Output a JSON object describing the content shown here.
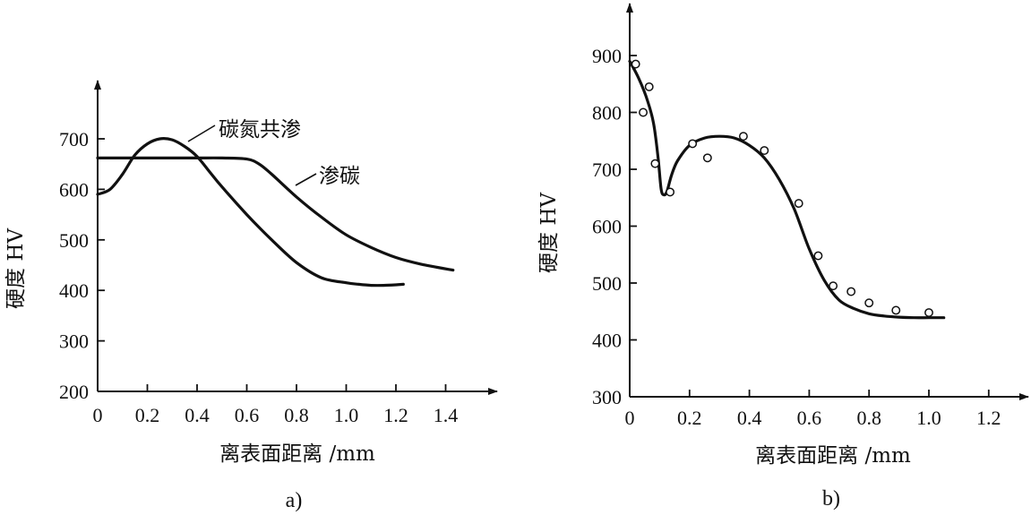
{
  "chart_data": [
    {
      "type": "line",
      "caption": "a)",
      "xlabel": "离表面距离 /mm",
      "ylabel": "硬度 HV",
      "xlim": [
        0,
        1.55
      ],
      "ylim": [
        200,
        780
      ],
      "xticks": [
        "0",
        "0.2",
        "0.4",
        "0.6",
        "0.8",
        "1.0",
        "1.2",
        "1.4"
      ],
      "yticks": [
        "200",
        "300",
        "400",
        "500",
        "600",
        "700"
      ],
      "series": [
        {
          "name": "碳氮共渗",
          "x": [
            0,
            0.05,
            0.1,
            0.15,
            0.2,
            0.25,
            0.3,
            0.35,
            0.4,
            0.45,
            0.5,
            0.6,
            0.7,
            0.8,
            0.9,
            1.0,
            1.05,
            1.1,
            1.15,
            1.2,
            1.23
          ],
          "y": [
            590,
            600,
            630,
            668,
            690,
            700,
            698,
            685,
            665,
            635,
            605,
            550,
            500,
            455,
            425,
            415,
            412,
            410,
            410,
            411,
            412
          ]
        },
        {
          "name": "渗碳",
          "x": [
            0,
            0.1,
            0.2,
            0.3,
            0.4,
            0.5,
            0.6,
            0.65,
            0.7,
            0.8,
            0.9,
            1.0,
            1.1,
            1.2,
            1.3,
            1.43
          ],
          "y": [
            662,
            662,
            662,
            662,
            662,
            662,
            660,
            650,
            630,
            585,
            545,
            510,
            485,
            465,
            452,
            440
          ]
        }
      ],
      "annotations": [
        "碳氮共渗",
        "渗碳"
      ]
    },
    {
      "type": "line",
      "caption": "b)",
      "xlabel": "离表面距离 /mm",
      "ylabel": "硬度 HV",
      "xlim": [
        0,
        1.3
      ],
      "ylim": [
        300,
        960
      ],
      "xticks": [
        "0",
        "0.2",
        "0.4",
        "0.6",
        "0.8",
        "1.0",
        "1.2"
      ],
      "yticks": [
        "300",
        "400",
        "500",
        "600",
        "700",
        "800",
        "900"
      ],
      "series": [
        {
          "x": [
            0,
            0.03,
            0.06,
            0.08,
            0.095,
            0.105,
            0.115,
            0.125,
            0.14,
            0.16,
            0.2,
            0.25,
            0.3,
            0.35,
            0.4,
            0.45,
            0.5,
            0.55,
            0.6,
            0.65,
            0.7,
            0.75,
            0.8,
            0.85,
            0.9,
            0.95,
            1.0,
            1.05
          ],
          "y": [
            890,
            860,
            820,
            780,
            720,
            665,
            655,
            662,
            690,
            715,
            742,
            755,
            758,
            755,
            742,
            720,
            682,
            630,
            560,
            505,
            470,
            455,
            446,
            442,
            440,
            439,
            439,
            439
          ]
        }
      ],
      "points": {
        "x": [
          0.02,
          0.045,
          0.065,
          0.085,
          0.135,
          0.21,
          0.26,
          0.38,
          0.45,
          0.565,
          0.63,
          0.68,
          0.74,
          0.8,
          0.89,
          1.0
        ],
        "y": [
          885,
          800,
          845,
          710,
          660,
          745,
          720,
          758,
          733,
          640,
          548,
          495,
          485,
          465,
          452,
          448
        ]
      }
    }
  ]
}
